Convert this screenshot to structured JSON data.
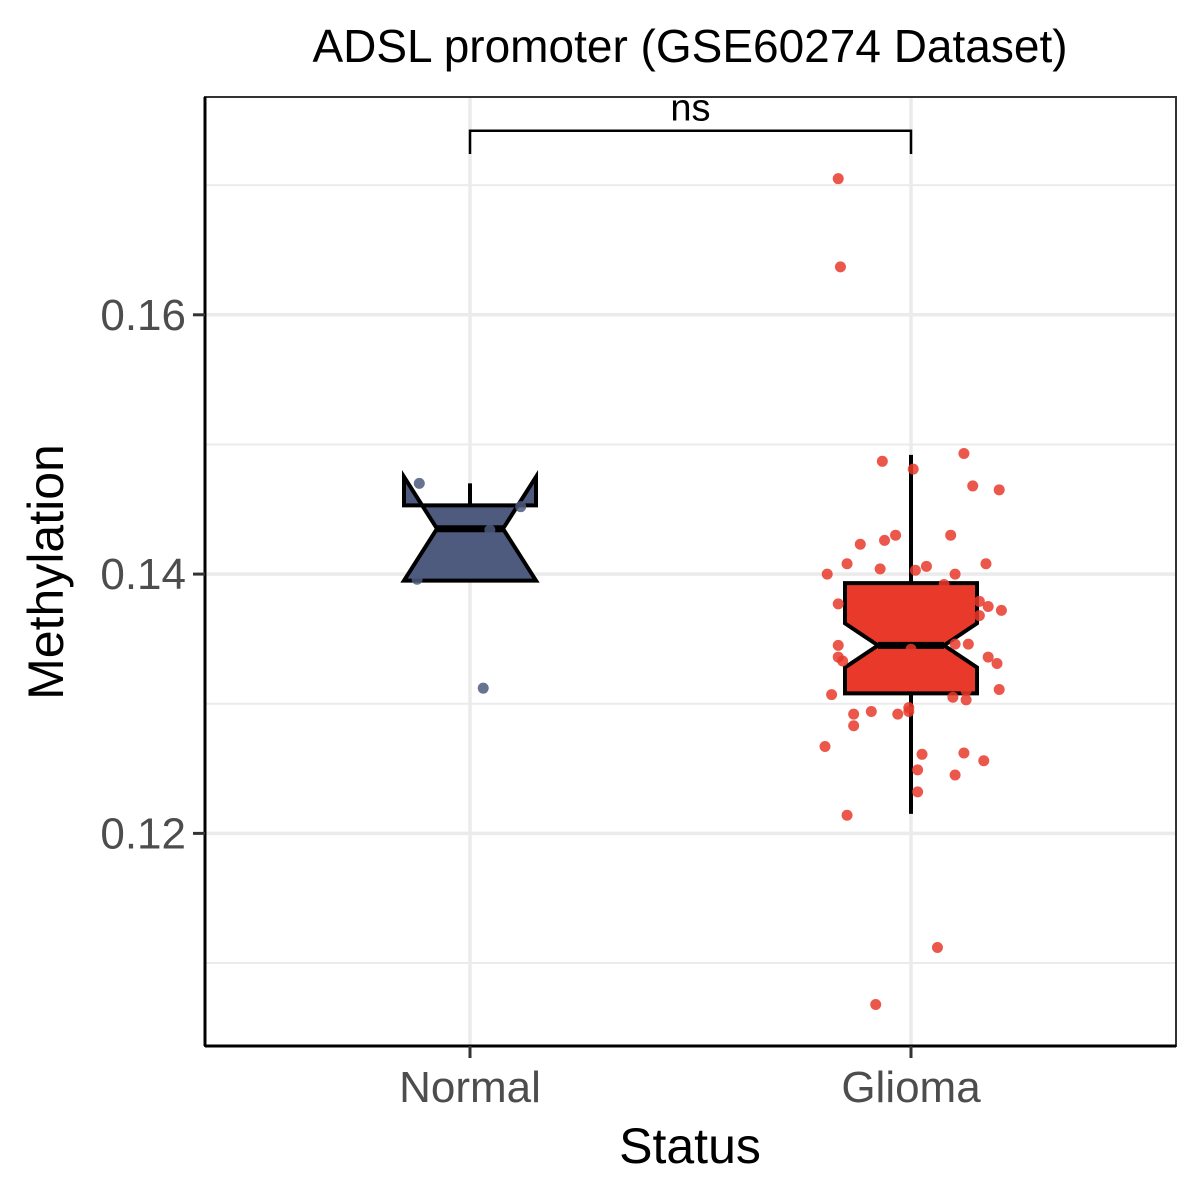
{
  "chart_data": {
    "type": "boxplot",
    "title": "ADSL promoter (GSE60274 Dataset)",
    "xlabel": "Status",
    "ylabel": "Methylation",
    "ylim": [
      0.1036,
      0.1768
    ],
    "y_ticks": [
      {
        "value": 0.12,
        "label": "0.12"
      },
      {
        "value": 0.14,
        "label": "0.14"
      },
      {
        "value": 0.16,
        "label": "0.16"
      }
    ],
    "y_minor": [
      0.11,
      0.13,
      0.15,
      0.17
    ],
    "grid": true,
    "notched": true,
    "categories": [
      "Normal",
      "Glioma"
    ],
    "series": [
      {
        "category": "Normal",
        "color": "#4e5a7e",
        "box": {
          "q1": 0.1395,
          "median": 0.1435,
          "q3": 0.1453,
          "whisker_low": 0.1395,
          "whisker_high": 0.147,
          "notch_low": 0.1395,
          "notch_high": 0.1475
        },
        "points": [
          {
            "x": -0.23,
            "y": 0.147
          },
          {
            "x": -0.24,
            "y": 0.1396
          },
          {
            "x": 0.23,
            "y": 0.1452
          },
          {
            "x": 0.09,
            "y": 0.1434
          },
          {
            "x": 0.06,
            "y": 0.1312
          }
        ]
      },
      {
        "category": "Glioma",
        "color": "#e8392a",
        "box": {
          "q1": 0.1308,
          "median": 0.1345,
          "q3": 0.1393,
          "whisker_low": 0.1215,
          "whisker_high": 0.1492,
          "notch_low": 0.1328,
          "notch_high": 0.1362
        },
        "points": [
          {
            "x": -0.33,
            "y": 0.1705
          },
          {
            "x": -0.32,
            "y": 0.1637
          },
          {
            "x": -0.13,
            "y": 0.1487
          },
          {
            "x": 0.01,
            "y": 0.1481
          },
          {
            "x": 0.24,
            "y": 0.1493
          },
          {
            "x": 0.28,
            "y": 0.1468
          },
          {
            "x": 0.4,
            "y": 0.1465
          },
          {
            "x": 0.18,
            "y": 0.143
          },
          {
            "x": -0.07,
            "y": 0.143
          },
          {
            "x": -0.12,
            "y": 0.1426
          },
          {
            "x": -0.23,
            "y": 0.1423
          },
          {
            "x": -0.29,
            "y": 0.1408
          },
          {
            "x": -0.38,
            "y": 0.14
          },
          {
            "x": -0.14,
            "y": 0.1404
          },
          {
            "x": 0.02,
            "y": 0.1403
          },
          {
            "x": 0.07,
            "y": 0.1406
          },
          {
            "x": 0.2,
            "y": 0.14
          },
          {
            "x": 0.34,
            "y": 0.1408
          },
          {
            "x": 0.15,
            "y": 0.1392
          },
          {
            "x": -0.33,
            "y": 0.1377
          },
          {
            "x": -0.24,
            "y": 0.1373
          },
          {
            "x": 0.31,
            "y": 0.1379
          },
          {
            "x": 0.35,
            "y": 0.1375
          },
          {
            "x": 0.41,
            "y": 0.1372
          },
          {
            "x": 0.31,
            "y": 0.1368
          },
          {
            "x": -0.23,
            "y": 0.1362
          },
          {
            "x": -0.15,
            "y": 0.1352
          },
          {
            "x": -0.14,
            "y": 0.1354
          },
          {
            "x": -0.33,
            "y": 0.1345
          },
          {
            "x": 0.2,
            "y": 0.1346
          },
          {
            "x": 0.26,
            "y": 0.1346
          },
          {
            "x": 0.0,
            "y": 0.1342
          },
          {
            "x": -0.33,
            "y": 0.1336
          },
          {
            "x": -0.31,
            "y": 0.1333
          },
          {
            "x": 0.17,
            "y": 0.1336
          },
          {
            "x": 0.35,
            "y": 0.1336
          },
          {
            "x": 0.39,
            "y": 0.1331
          },
          {
            "x": 0.22,
            "y": 0.1325
          },
          {
            "x": 0.17,
            "y": 0.1322
          },
          {
            "x": 0.18,
            "y": 0.132
          },
          {
            "x": -0.36,
            "y": 0.1307
          },
          {
            "x": 0.19,
            "y": 0.1305
          },
          {
            "x": 0.25,
            "y": 0.131
          },
          {
            "x": 0.25,
            "y": 0.1303
          },
          {
            "x": 0.4,
            "y": 0.1311
          },
          {
            "x": -0.18,
            "y": 0.1294
          },
          {
            "x": -0.26,
            "y": 0.1292
          },
          {
            "x": -0.06,
            "y": 0.1292
          },
          {
            "x": -0.01,
            "y": 0.1297
          },
          {
            "x": -0.01,
            "y": 0.1294
          },
          {
            "x": -0.26,
            "y": 0.1283
          },
          {
            "x": -0.39,
            "y": 0.1267
          },
          {
            "x": 0.05,
            "y": 0.1261
          },
          {
            "x": 0.24,
            "y": 0.1262
          },
          {
            "x": 0.33,
            "y": 0.1256
          },
          {
            "x": 0.03,
            "y": 0.1249
          },
          {
            "x": 0.2,
            "y": 0.1245
          },
          {
            "x": 0.03,
            "y": 0.1232
          },
          {
            "x": -0.29,
            "y": 0.1214
          },
          {
            "x": 0.12,
            "y": 0.1112
          },
          {
            "x": -0.16,
            "y": 0.1068
          }
        ]
      }
    ],
    "annotation": {
      "text": "ns",
      "from": "Normal",
      "to": "Glioma",
      "y": 0.1742,
      "tip": 0.1724
    }
  }
}
